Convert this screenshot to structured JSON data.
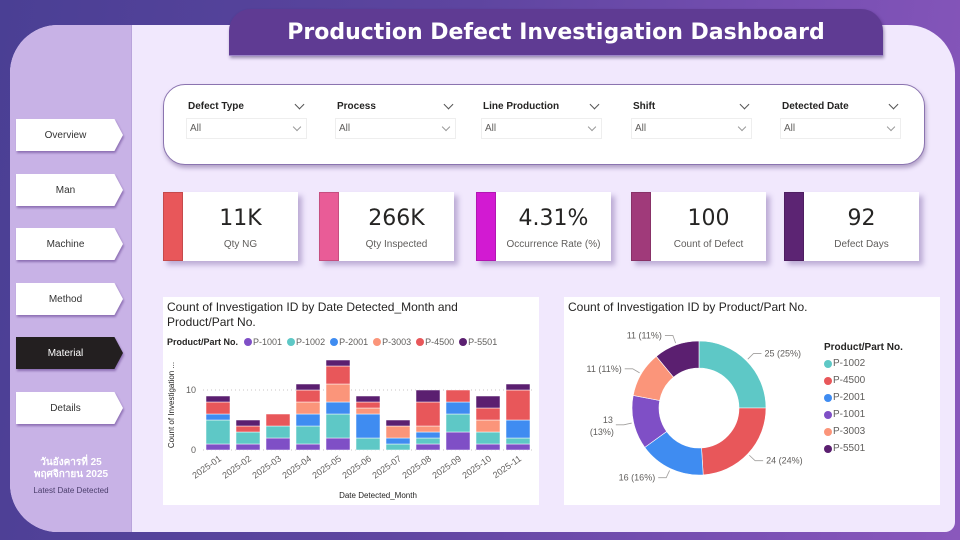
{
  "header": {
    "title": "Production Defect Investigation Dashboard"
  },
  "sidebar": {
    "items": [
      {
        "label": "Overview",
        "active": false
      },
      {
        "label": "Man",
        "active": false
      },
      {
        "label": "Machine",
        "active": false
      },
      {
        "label": "Method",
        "active": false
      },
      {
        "label": "Material",
        "active": true
      },
      {
        "label": "Details",
        "active": false
      }
    ],
    "latest_date_line1": "วันอังคารที่ 25",
    "latest_date_line2": "พฤศจิกายน 2025",
    "latest_date_label": "Latest Date Detected"
  },
  "filters": [
    {
      "label": "Defect Type",
      "value": "All"
    },
    {
      "label": "Process",
      "value": "All"
    },
    {
      "label": "Line Production",
      "value": "All"
    },
    {
      "label": "Shift",
      "value": "All"
    },
    {
      "label": "Detected Date",
      "value": "All"
    }
  ],
  "kpis": [
    {
      "value": "11K",
      "label": "Qty NG",
      "color": "#e8575a"
    },
    {
      "value": "266K",
      "label": "Qty Inspected",
      "color": "#e95c97"
    },
    {
      "value": "4.31%",
      "label": "Occurrence Rate (%)",
      "color": "#d21ad2"
    },
    {
      "value": "100",
      "label": "Count of Defect",
      "color": "#a03a7a"
    },
    {
      "value": "92",
      "label": "Defect Days",
      "color": "#5c2473"
    }
  ],
  "colors": {
    "P-1001": "#7f4fc6",
    "P-1002": "#5ec8c6",
    "P-2001": "#3f8cf1",
    "P-3003": "#fb957a",
    "P-4500": "#e8575a",
    "P-5501": "#5b1f70"
  },
  "chart_data": [
    {
      "type": "bar",
      "stacked": true,
      "title": "Count of Investigation ID by Date Detected_Month and Product/Part No.",
      "legend_title": "Product/Part No.",
      "legend_position": "top-left",
      "xlabel": "Date Detected_Month",
      "ylabel": "Count of Investigation ...",
      "ylim": [
        0,
        15
      ],
      "yticks": [
        0,
        10
      ],
      "grid": true,
      "categories": [
        "2025-01",
        "2025-02",
        "2025-03",
        "2025-04",
        "2025-05",
        "2025-06",
        "2025-07",
        "2025-08",
        "2025-09",
        "2025-10",
        "2025-11"
      ],
      "series": [
        {
          "name": "P-1001",
          "values": [
            1,
            1,
            2,
            1,
            2,
            0,
            0,
            1,
            3,
            1,
            1
          ]
        },
        {
          "name": "P-1002",
          "values": [
            4,
            2,
            2,
            3,
            4,
            2,
            1,
            1,
            3,
            2,
            1
          ]
        },
        {
          "name": "P-2001",
          "values": [
            1,
            0,
            0,
            2,
            2,
            4,
            1,
            1,
            2,
            0,
            3
          ]
        },
        {
          "name": "P-3003",
          "values": [
            0,
            0,
            0,
            2,
            3,
            1,
            2,
            1,
            0,
            2,
            0
          ]
        },
        {
          "name": "P-4500",
          "values": [
            2,
            1,
            2,
            2,
            3,
            1,
            0,
            4,
            2,
            2,
            5
          ]
        },
        {
          "name": "P-5501",
          "values": [
            1,
            1,
            0,
            1,
            1,
            1,
            1,
            2,
            0,
            2,
            1
          ]
        }
      ]
    },
    {
      "type": "pie",
      "donut": true,
      "title": "Count of Investigation ID by Product/Part No.",
      "legend_title": "Product/Part No.",
      "legend_position": "right",
      "slices": [
        {
          "name": "P-1002",
          "value": 25,
          "label": "25 (25%)"
        },
        {
          "name": "P-4500",
          "value": 24,
          "label": "24 (24%)"
        },
        {
          "name": "P-2001",
          "value": 16,
          "label": "16 (16%)"
        },
        {
          "name": "P-1001",
          "value": 13,
          "label": "13 (13%)"
        },
        {
          "name": "P-3003",
          "value": 11,
          "label": "11 (11%)"
        },
        {
          "name": "P-5501",
          "value": 11,
          "label": "11 (11%)"
        }
      ]
    }
  ]
}
